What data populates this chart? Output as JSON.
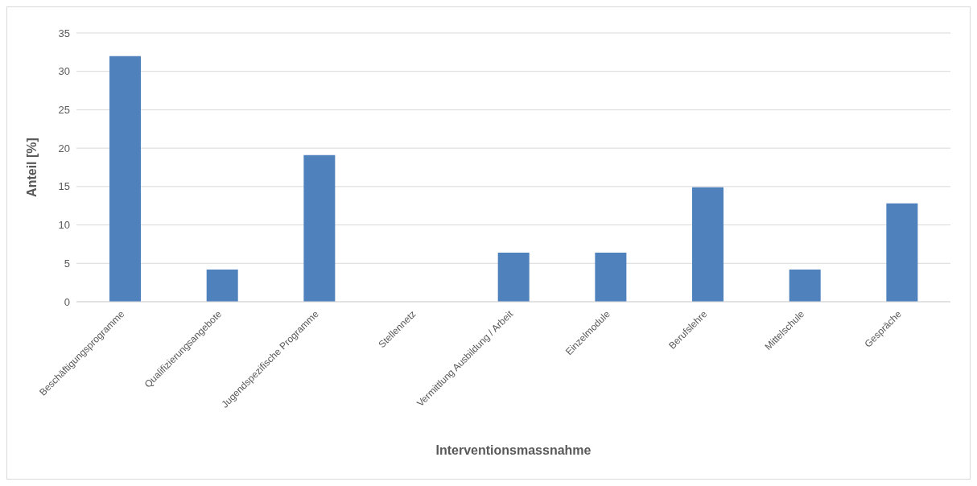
{
  "chart_data": {
    "type": "bar",
    "xlabel": "Interventionsmassnahme",
    "ylabel": "Anteil [%]",
    "categories": [
      "Beschäftigungsprogramme",
      "Qualifizierungsangebote",
      "Jugendspezifische Programme",
      "Stellennetz",
      "Vermittlung Ausbildung / Arbeit",
      "Einzelmodule",
      "Berufslehre",
      "Mittelschule",
      "Gespräche"
    ],
    "values": [
      32,
      4.2,
      19.1,
      0,
      6.4,
      6.4,
      14.9,
      4.2,
      12.8
    ],
    "color": "#4f81bd",
    "ylim": [
      0,
      35
    ],
    "yticks": [
      0,
      5,
      10,
      15,
      20,
      25,
      30,
      35
    ],
    "grid": "y"
  }
}
